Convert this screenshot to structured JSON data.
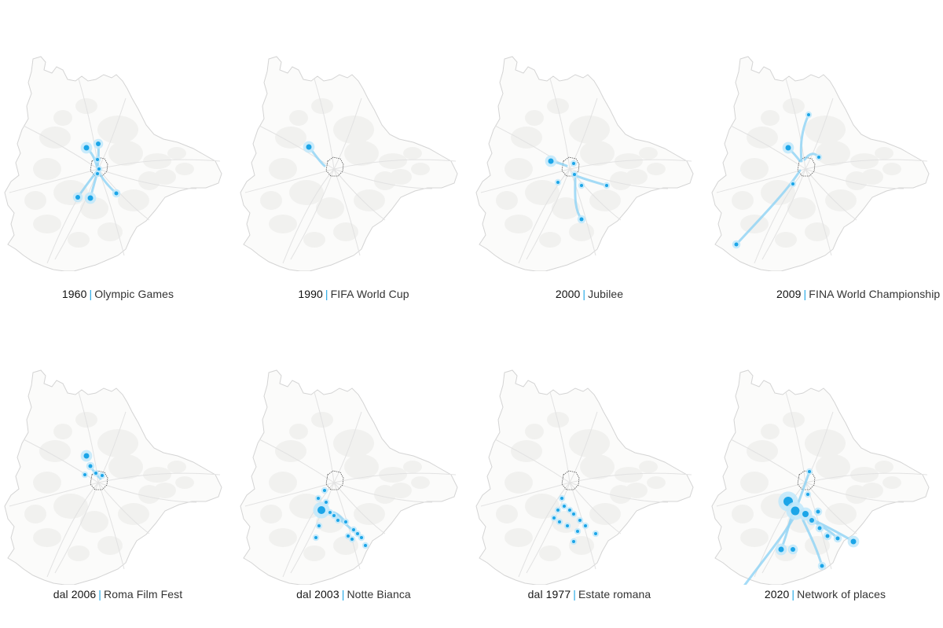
{
  "colors": {
    "accent": "#1ba5e8",
    "flow": "#8ed3f5",
    "halo": "#bfe7fa",
    "boundary": "#d4d4d4",
    "roads": "#e2e2e2",
    "urban": "#f1f1ef",
    "center": "#555555"
  },
  "panels": [
    {
      "prefix": "",
      "year": "1960",
      "sep": "|",
      "name": "Olympic Games"
    },
    {
      "prefix": "",
      "year": "1990",
      "sep": "|",
      "name": "FIFA World Cup"
    },
    {
      "prefix": "",
      "year": "2000",
      "sep": "|",
      "name": "Jubilee"
    },
    {
      "prefix": "",
      "year": "2009",
      "sep": "|",
      "name": "FINA World Championship"
    },
    {
      "prefix": "dal ",
      "year": "2006",
      "sep": "|",
      "name": "Roma Film Fest"
    },
    {
      "prefix": "dal ",
      "year": "2003",
      "sep": "|",
      "name": "Notte Bianca"
    },
    {
      "prefix": "dal ",
      "year": "1977",
      "sep": "|",
      "name": "Estate romana"
    },
    {
      "prefix": "",
      "year": "2020",
      "sep": "|",
      "name": "Network of places"
    }
  ]
}
